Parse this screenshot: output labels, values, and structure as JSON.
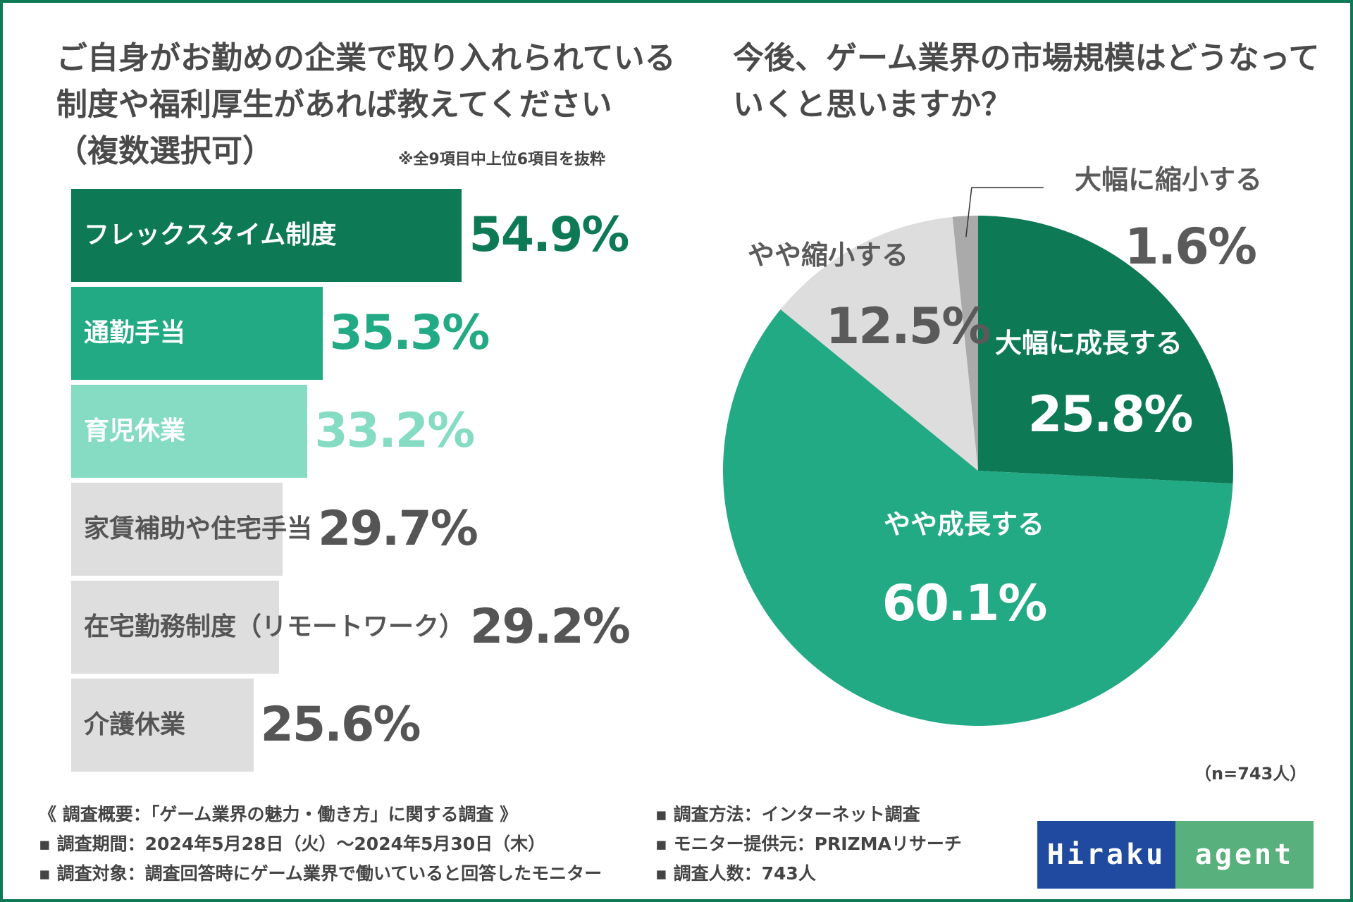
{
  "chart_data": [
    {
      "type": "bar",
      "orientation": "horizontal",
      "title": "ご自身がお勤めの企業で取り入れられている制度や福利厚生があれば教えてください（複数選択可）",
      "note": "※全9項目中上位6項目を抜粋",
      "categories": [
        "フレックスタイム制度",
        "通勤手当",
        "育児休業",
        "家賃補助や住宅手当",
        "在宅勤務制度（リモートワーク）",
        "介護休業"
      ],
      "values": [
        54.9,
        35.3,
        33.2,
        29.7,
        29.2,
        25.6
      ],
      "value_labels": [
        "54.9%",
        "35.3%",
        "33.2%",
        "29.7%",
        "29.2%",
        "25.6%"
      ],
      "unit": "%",
      "xlim": [
        0,
        100
      ],
      "bar_colors": [
        "#0d7a55",
        "#22aa84",
        "#86dcc2",
        "#dedede",
        "#dedede",
        "#dedede"
      ],
      "label_colors": [
        "#ffffff",
        "#ffffff",
        "#ffffff",
        "#555555",
        "#555555",
        "#555555"
      ],
      "value_colors": [
        "#0d7a55",
        "#22aa84",
        "#86dcc2",
        "#555555",
        "#555555",
        "#555555"
      ]
    },
    {
      "type": "pie",
      "title": "今後、ゲーム業界の市場規模はどうなっていくと思いますか？",
      "categories": [
        "大幅に成長する",
        "やや成長する",
        "やや縮小する",
        "大幅に縮小する"
      ],
      "values": [
        25.8,
        60.1,
        12.5,
        1.6
      ],
      "value_labels": [
        "25.8%",
        "60.1%",
        "12.5%",
        "1.6%"
      ],
      "colors": [
        "#0d7a55",
        "#22aa84",
        "#dddddd",
        "#aaaaaa"
      ],
      "label_colors": [
        "#ffffff",
        "#ffffff",
        "#5a5a5a",
        "#5a5a5a"
      ],
      "start": "12 o'clock, clockwise",
      "sample": "（n=743人）"
    }
  ],
  "header": {
    "left_title_lines": [
      "ご自身がお勤めの企業で取り入れられている",
      "制度や福利厚生があれば教えてください",
      "（複数選択可）"
    ],
    "right_title_lines": [
      "今後、ゲーム業界の市場規模はどうなって",
      "いくと思いますか？"
    ]
  },
  "footer": {
    "left_lines": [
      "《 調査概要：「ゲーム業界の魅力・働き方」に関する調査 》",
      "▪ 調査期間：2024年5月28日（火）〜2024年5月30日（木）",
      "▪ 調査対象：調査回答時にゲーム業界で働いていると回答したモニター"
    ],
    "right_lines": [
      "▪ 調査方法：インターネット調査",
      "▪ モニター提供元：PRIZMAリサーチ",
      "▪ 調査人数：743人"
    ]
  },
  "logo": {
    "part1": "Hiraku",
    "part2": "agent",
    "color1": "#1f4aa0",
    "color2": "#58b07c"
  },
  "theme": {
    "frame": "#0d7a55"
  }
}
